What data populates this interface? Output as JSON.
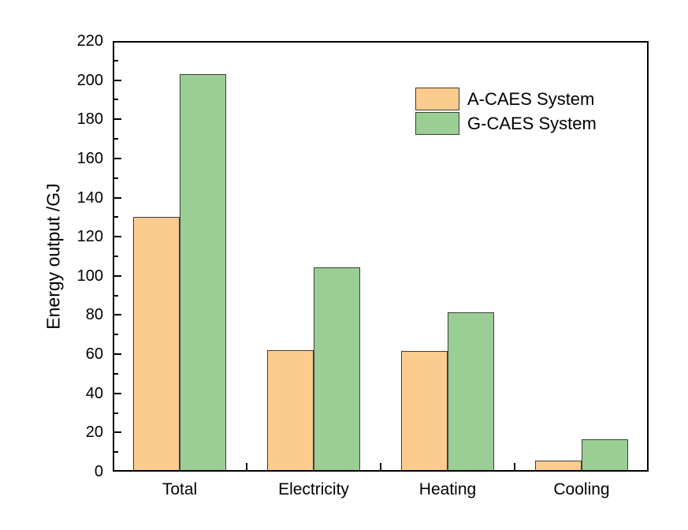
{
  "chart_data": {
    "type": "bar",
    "title": "",
    "ylabel": "Energy output /GJ",
    "xlabel": "",
    "categories": [
      "Total",
      "Electricity",
      "Heating",
      "Cooling"
    ],
    "series": [
      {
        "name": "A-CAES System",
        "color": "#FCCB8E",
        "values": [
          130,
          62,
          61.5,
          5.5
        ]
      },
      {
        "name": "G-CAES System",
        "color": "#9BCE95",
        "values": [
          203,
          104.5,
          81.5,
          16.5
        ]
      }
    ],
    "ylim": [
      0,
      220
    ],
    "y_major_step": 20,
    "y_minor_step": 10,
    "grid": false,
    "legend_position": "inside-top-right",
    "colors": {
      "bar_border": "#3d3d3d",
      "axis": "#000000",
      "background": "#ffffff",
      "text": "#000000"
    }
  }
}
